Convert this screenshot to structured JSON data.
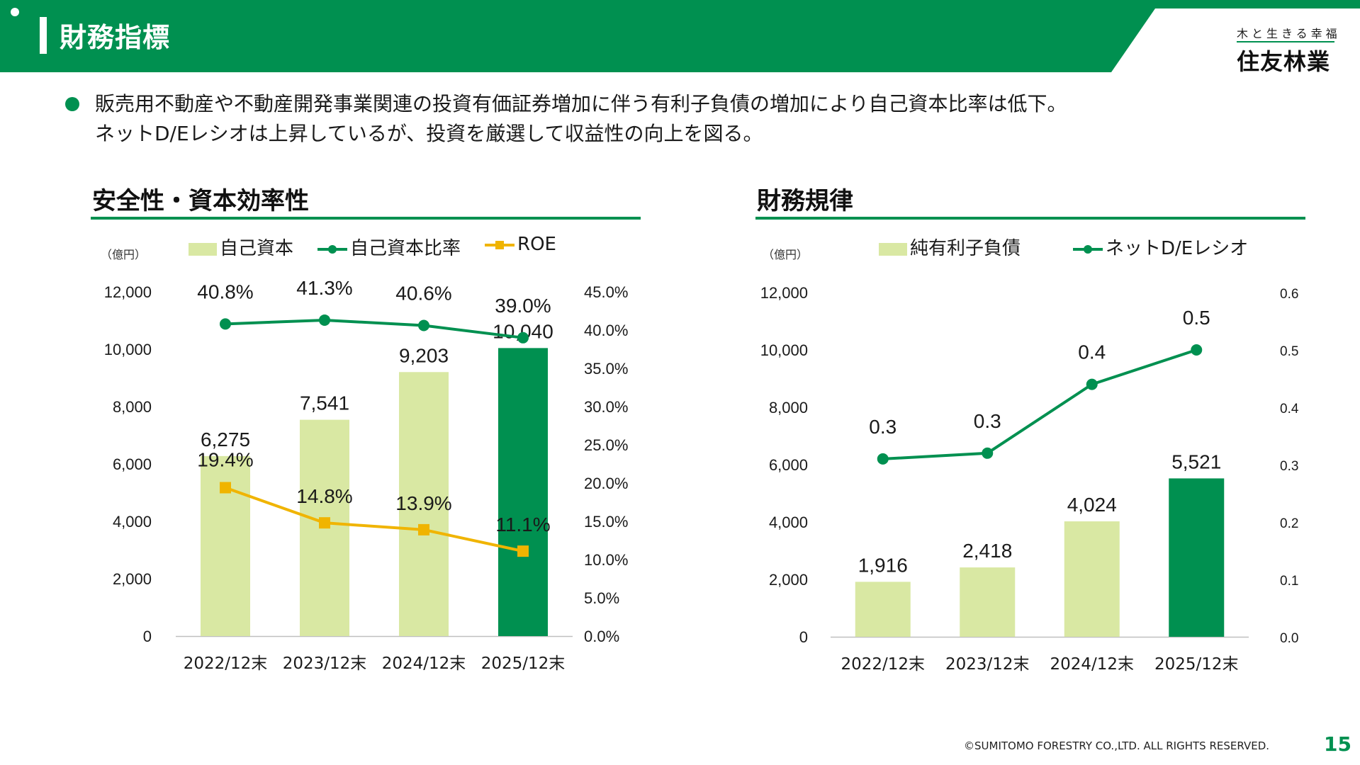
{
  "header": {
    "title": "財務指標",
    "logo_tagline": "木と生きる幸福",
    "logo_name": "住友林業"
  },
  "bullet": {
    "line1": "販売用不動産や不動産開発事業関連の投資有価証券増加に伴う有利子負債の増加により自己資本比率は低下。",
    "line2": "ネットD/Eレシオは上昇しているが、投資を厳選して収益性の向上を図る。"
  },
  "colors": {
    "brand_green": "#009050",
    "light_green": "#d9e8a3",
    "roe_yellow": "#f0b400"
  },
  "sections": {
    "left_title": "安全性・資本効率性",
    "right_title": "財務規律"
  },
  "chart_data": [
    {
      "type": "bar",
      "title": "安全性・資本効率性",
      "unit_label": "（億円）",
      "categories": [
        "2022/12末",
        "2023/12末",
        "2024/12末",
        "2025/12末"
      ],
      "legend": [
        "自己資本",
        "自己資本比率",
        "ROE"
      ],
      "y_left": {
        "range": [
          0,
          12000
        ],
        "ticks": [
          "0",
          "2,000",
          "4,000",
          "6,000",
          "8,000",
          "10,000",
          "12,000"
        ]
      },
      "y_right": {
        "range": [
          0,
          45
        ],
        "ticks": [
          "0.0%",
          "5.0%",
          "10.0%",
          "15.0%",
          "20.0%",
          "25.0%",
          "30.0%",
          "35.0%",
          "40.0%",
          "45.0%"
        ]
      },
      "series": [
        {
          "name": "自己資本",
          "kind": "bar",
          "axis": "left",
          "values": [
            6275,
            7541,
            9203,
            10040
          ],
          "labels": [
            "6,275",
            "7,541",
            "9,203",
            "10,040"
          ],
          "highlight_last": true
        },
        {
          "name": "自己資本比率",
          "kind": "line",
          "axis": "right",
          "values": [
            40.8,
            41.3,
            40.6,
            39.0
          ],
          "labels": [
            "40.8%",
            "41.3%",
            "40.6%",
            "39.0%"
          ]
        },
        {
          "name": "ROE",
          "kind": "line",
          "axis": "right",
          "values": [
            19.4,
            14.8,
            13.9,
            11.1
          ],
          "labels": [
            "19.4%",
            "14.8%",
            "13.9%",
            "11.1%"
          ]
        }
      ]
    },
    {
      "type": "bar",
      "title": "財務規律",
      "unit_label": "（億円）",
      "categories": [
        "2022/12末",
        "2023/12末",
        "2024/12末",
        "2025/12末"
      ],
      "legend": [
        "純有利子負債",
        "ネットD/Eレシオ"
      ],
      "y_left": {
        "range": [
          0,
          12000
        ],
        "ticks": [
          "0",
          "2,000",
          "4,000",
          "6,000",
          "8,000",
          "10,000",
          "12,000"
        ]
      },
      "y_right": {
        "range": [
          0,
          0.6
        ],
        "ticks": [
          "0.0",
          "0.1",
          "0.2",
          "0.3",
          "0.4",
          "0.5",
          "0.6"
        ]
      },
      "series": [
        {
          "name": "純有利子負債",
          "kind": "bar",
          "axis": "left",
          "values": [
            1916,
            2418,
            4024,
            5521
          ],
          "labels": [
            "1,916",
            "2,418",
            "4,024",
            "5,521"
          ],
          "highlight_last": true
        },
        {
          "name": "ネットD/Eレシオ",
          "kind": "line",
          "axis": "right",
          "values": [
            0.31,
            0.32,
            0.44,
            0.5
          ],
          "labels": [
            "0.3",
            "0.3",
            "0.4",
            "0.5"
          ]
        }
      ]
    }
  ],
  "footer": {
    "copyright": "©SUMITOMO FORESTRY CO.,LTD. ALL RIGHTS RESERVED.",
    "page_number": "15"
  }
}
